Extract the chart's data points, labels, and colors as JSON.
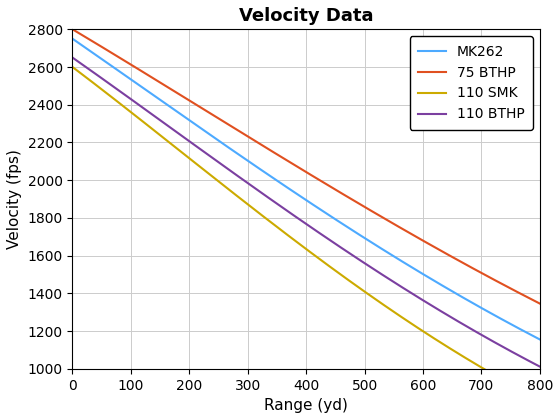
{
  "title": "Velocity Data",
  "xlabel": "Range (yd)",
  "ylabel": "Velocity (fps)",
  "xlim": [
    0,
    800
  ],
  "ylim": [
    1000,
    2800
  ],
  "xticks": [
    0,
    100,
    200,
    300,
    400,
    500,
    600,
    700,
    800
  ],
  "yticks": [
    1000,
    1200,
    1400,
    1600,
    1800,
    2000,
    2200,
    2400,
    2600,
    2800
  ],
  "series": [
    {
      "label": "MK262",
      "color": "#4daaff",
      "v0": 2750,
      "k1": 0.00078,
      "k2": 3.8e-07
    },
    {
      "label": "75 BTHP",
      "color": "#e05020",
      "v0": 2800,
      "k1": 0.00066,
      "k2": 3.2e-07
    },
    {
      "label": "110 SMK",
      "color": "#ccaa00",
      "v0": 2600,
      "k1": 0.0009,
      "k2": 6.5e-07
    },
    {
      "label": "110 BTHP",
      "color": "#7b3fa0",
      "v0": 2650,
      "k1": 0.00082,
      "k2": 4.8e-07
    }
  ],
  "background_color": "#ffffff",
  "grid_color": "#cccccc",
  "title_fontsize": 13,
  "label_fontsize": 11,
  "tick_fontsize": 10,
  "legend_fontsize": 10,
  "line_width": 1.5
}
